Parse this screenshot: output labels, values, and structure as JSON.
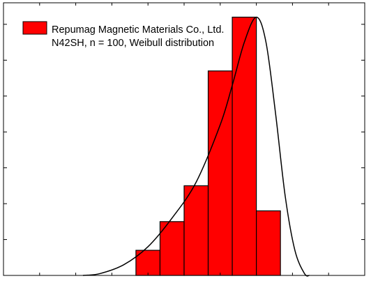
{
  "chart_data": {
    "type": "bar",
    "legend": {
      "label_line1": "Repumag Magnetic Materials Co., Ltd.",
      "label_line2": "N42SH, n = 100, Weibull distribution",
      "placement": "top-left"
    },
    "bin_edges": [
      0.4,
      0.5,
      0.6,
      0.7,
      0.8,
      0.9,
      1.0
    ],
    "counts": [
      0.7,
      1.5,
      2.5,
      5.7,
      7.2,
      1.8
    ],
    "fit_curve": {
      "type": "weibull",
      "points": [
        [
          0.18,
          0.0
        ],
        [
          0.25,
          0.05
        ],
        [
          0.35,
          0.3
        ],
        [
          0.45,
          0.8
        ],
        [
          0.55,
          1.6
        ],
        [
          0.65,
          2.6
        ],
        [
          0.75,
          4.2
        ],
        [
          0.8,
          5.3
        ],
        [
          0.85,
          6.5
        ],
        [
          0.9,
          7.2
        ],
        [
          0.94,
          6.5
        ],
        [
          0.98,
          4.5
        ],
        [
          1.02,
          2.2
        ],
        [
          1.06,
          0.7
        ],
        [
          1.1,
          0.05
        ],
        [
          1.12,
          0.0
        ]
      ]
    },
    "xlim": [
      -0.15,
      1.35
    ],
    "ylim": [
      0,
      7.6
    ],
    "x_tick_values": [
      -0.15,
      0.0,
      0.15,
      0.3,
      0.45,
      0.6,
      0.75,
      0.9,
      1.05,
      1.2,
      1.35
    ],
    "y_tick_values": [
      0,
      1,
      2,
      3,
      4,
      5,
      6,
      7
    ],
    "colors": {
      "bar_fill": "#ff0000",
      "bar_edge": "#000000",
      "curve": "#000000",
      "axes": "#000000"
    }
  }
}
